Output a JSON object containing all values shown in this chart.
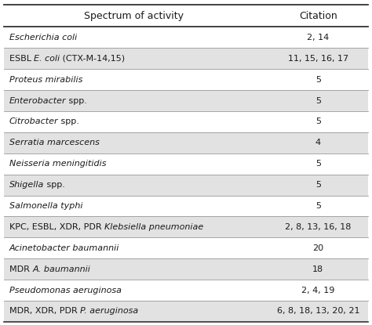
{
  "col1_header": "Spectrum of activity",
  "col2_header": "Citation",
  "rows": [
    {
      "parts": [
        {
          "text": "Escherichia coli",
          "italic": true
        }
      ],
      "citation": "2, 14",
      "shaded": false
    },
    {
      "parts": [
        {
          "text": "ESBL ",
          "italic": false
        },
        {
          "text": "E. coli",
          "italic": true
        },
        {
          "text": " (CTX-M-14,15)",
          "italic": false
        }
      ],
      "citation": "11, 15, 16, 17",
      "shaded": true
    },
    {
      "parts": [
        {
          "text": "Proteus mirabilis",
          "italic": true
        }
      ],
      "citation": "5",
      "shaded": false
    },
    {
      "parts": [
        {
          "text": "Enterobacter",
          "italic": true
        },
        {
          "text": " spp.",
          "italic": false
        }
      ],
      "citation": "5",
      "shaded": true
    },
    {
      "parts": [
        {
          "text": "Citrobacter",
          "italic": true
        },
        {
          "text": " spp.",
          "italic": false
        }
      ],
      "citation": "5",
      "shaded": false
    },
    {
      "parts": [
        {
          "text": "Serratia marcescens",
          "italic": true
        }
      ],
      "citation": "4",
      "shaded": true
    },
    {
      "parts": [
        {
          "text": "Neisseria meningitidis",
          "italic": true
        }
      ],
      "citation": "5",
      "shaded": false
    },
    {
      "parts": [
        {
          "text": "Shigella",
          "italic": true
        },
        {
          "text": " spp.",
          "italic": false
        }
      ],
      "citation": "5",
      "shaded": true
    },
    {
      "parts": [
        {
          "text": "Salmonella typhi",
          "italic": true
        }
      ],
      "citation": "5",
      "shaded": false
    },
    {
      "parts": [
        {
          "text": "KPC, ESBL, XDR, PDR ",
          "italic": false
        },
        {
          "text": "Klebsiella pneumoniae",
          "italic": true
        }
      ],
      "citation": "2, 8, 13, 16, 18",
      "shaded": true
    },
    {
      "parts": [
        {
          "text": "Acinetobacter baumannii",
          "italic": true
        }
      ],
      "citation": "20",
      "shaded": false
    },
    {
      "parts": [
        {
          "text": "MDR ",
          "italic": false
        },
        {
          "text": "A. baumannii",
          "italic": true
        }
      ],
      "citation": "18",
      "shaded": true
    },
    {
      "parts": [
        {
          "text": "Pseudomonas aeruginosa",
          "italic": true
        }
      ],
      "citation": "2, 4, 19",
      "shaded": false
    },
    {
      "parts": [
        {
          "text": "MDR, XDR, PDR ",
          "italic": false
        },
        {
          "text": "P. aeruginosa",
          "italic": true
        }
      ],
      "citation": "6, 8, 18, 13, 20, 21",
      "shaded": true
    }
  ],
  "bg_color": "#ffffff",
  "shaded_color": "#e2e2e2",
  "text_color": "#1a1a1a",
  "font_size": 8.0,
  "header_font_size": 9.0,
  "col_split": 0.72
}
